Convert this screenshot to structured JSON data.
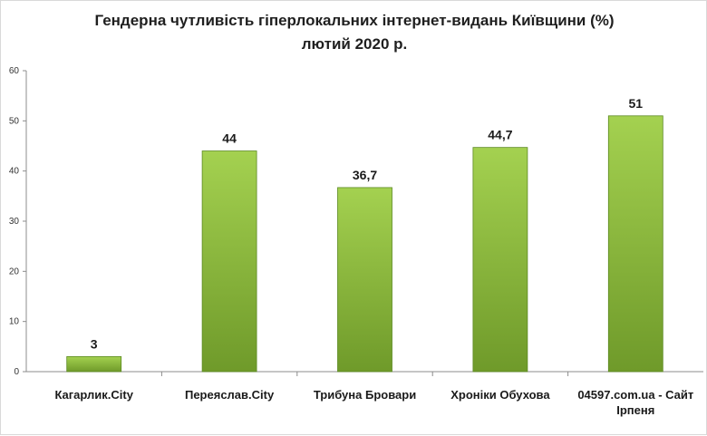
{
  "chart_data": {
    "type": "bar",
    "title": "Гендерна чутливість гіперлокальних інтернет-видань Київщини (%)",
    "subtitle": "лютий 2020 р.",
    "categories": [
      [
        "Кагарлик.City"
      ],
      [
        "Переяслав.City"
      ],
      [
        "Трибуна Бровари"
      ],
      [
        "Хроніки Обухова"
      ],
      [
        "04597.com.ua - Сайт",
        "Ірпеня"
      ]
    ],
    "values": [
      3,
      44,
      36.7,
      44.7,
      51
    ],
    "data_labels": [
      "3",
      "44",
      "36,7",
      "44,7",
      "51"
    ],
    "ylim": [
      0,
      60
    ],
    "yticks": [
      0,
      10,
      20,
      30,
      40,
      50,
      60
    ],
    "grid": false,
    "colors": {
      "bar_light": "#a4d150",
      "bar_dark": "#6f9a2a",
      "bar_border": "#5c8a22",
      "axis": "#8c8c8c"
    }
  }
}
